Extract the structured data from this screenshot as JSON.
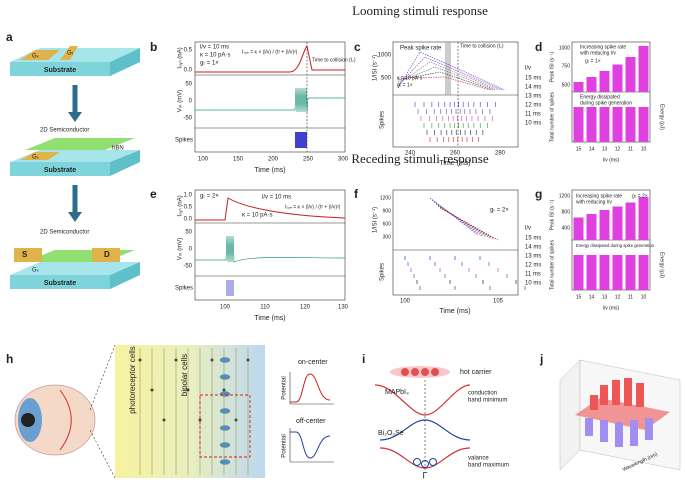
{
  "headings": {
    "looming": "Looming stimuli response",
    "receding": "Receding stimuli response"
  },
  "panel_labels": [
    "a",
    "b",
    "c",
    "d",
    "e",
    "f",
    "g",
    "h",
    "i",
    "j"
  ],
  "a": {
    "substrate": "Substrate",
    "gate_s": "Gₛ",
    "gate_t": "Gₜ",
    "semiconductor": "2D Semiconductor",
    "hbn": "hBN",
    "source": "S",
    "drain": "D"
  },
  "b": {
    "lv": "l/v = 10 ms",
    "kappa": "κ = 10 pA·s",
    "gain": "gₜ = 1×",
    "formula": "Iₛᵧₙ = κ × (l/v) / (t² + (l/v)²)",
    "collision": "Time to collision (t꜀)",
    "y1": "Iₛᵧₙ (nA)",
    "y2": "Vₘ (mV)",
    "y3": "Spikes",
    "y1ticks": [
      "0.5",
      "0.0"
    ],
    "y2ticks": [
      "50",
      "0",
      "-50"
    ],
    "xticks": [
      "100",
      "150",
      "200",
      "250",
      "300"
    ],
    "xlabel": "Time (ms)"
  },
  "c": {
    "peak": "Peak spike rate",
    "collision": "Time to collision (t꜀)",
    "kappa": "κ = 10 pA·s",
    "gain": "gₜ = 1×",
    "legend_title": "l/v",
    "legend": [
      "15 ms",
      "14 ms",
      "13 ms",
      "12 ms",
      "11 ms",
      "10 ms"
    ],
    "y1": "1/ISI (s⁻¹)",
    "y2": "Spikes",
    "y1ticks": [
      "1000",
      "500"
    ],
    "xticks": [
      "240",
      "260",
      "280"
    ],
    "xlabel": "Time (ms)"
  },
  "d": {
    "note1": "Increasing spike rate",
    "note2": "with reducing l/v",
    "gain": "gₜ = 1×",
    "y1": "Peak ISI (s⁻¹)",
    "y1ticks": [
      "1000",
      "750",
      "500"
    ],
    "energy1": "Energy dissipated",
    "energy2": "during spike generation",
    "y2": "Total number of spikes",
    "y2r": "Energy (pJ)",
    "xticks": [
      "15",
      "14",
      "13",
      "12",
      "11",
      "10"
    ],
    "xlabel": "l/v (ms)"
  },
  "e": {
    "lv": "l/v = 10 ms",
    "gain": "gₜ = 2×",
    "kappa": "κ = 10 pA·s",
    "formula": "Iₛᵧₙ = κ × (l/v) / (t² + (l/v)²)",
    "y1": "Iₛᵧₙ (nA)",
    "y2": "Vₘ (mV)",
    "y3": "Spikes",
    "y1ticks": [
      "1.0",
      "0.5",
      "0.0"
    ],
    "y2ticks": [
      "50",
      "0",
      "-50"
    ],
    "xticks": [
      "100",
      "110",
      "120",
      "130"
    ],
    "xlabel": "Time (ms)"
  },
  "f": {
    "y1": "1/ISI (s⁻¹)",
    "y1ticks": [
      "1200",
      "900",
      "600",
      "300"
    ],
    "gain": "gₜ = 2×",
    "legend_title": "l/v",
    "legend": [
      "15 ms",
      "14 ms",
      "13 ms",
      "12 ms",
      "11 ms",
      "10 ms"
    ],
    "y2": "Spikes",
    "xticks": [
      "100",
      "105"
    ],
    "xlabel": "Time (ms)"
  },
  "g": {
    "note1": "Increasing spike rate",
    "note2": "with reducing l/v",
    "gain": "gₜ = 2×",
    "y1": "Peak ISI (s⁻¹)",
    "y1ticks": [
      "1200",
      "800",
      "400"
    ],
    "energy1": "Energy dissipated during spike generation",
    "y2": "Total number of spikes",
    "y2r": "Energy (pJ)",
    "xticks": [
      "15",
      "14",
      "13",
      "12",
      "11",
      "10"
    ],
    "xlabel": "l/v (ms)"
  },
  "h": {
    "photo": "photoreceptor cells",
    "bipolar": "bipolar cells",
    "on": "on-center",
    "off": "off-center",
    "potential": "Potential"
  },
  "i": {
    "hot": "hot carrier",
    "cbm1": "conduction",
    "cbm2": "band minimum",
    "mapbi": "MAPbI₃",
    "bise": "Bi₂O₂Se",
    "vbm1": "valance",
    "vbm2": "band maximum",
    "gamma": "Γ"
  },
  "j": {
    "wavelength": "Wavelength (nm)"
  }
}
